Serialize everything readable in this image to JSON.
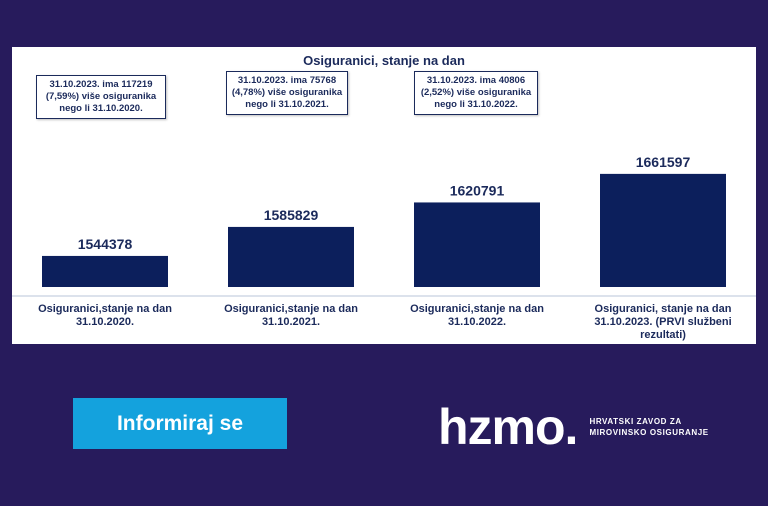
{
  "chart_data": {
    "type": "bar",
    "title": "Osiguranici, stanje na dan",
    "categories": [
      "Osiguranici,stanje na dan 31.10.2020.",
      "Osiguranici,stanje na dan 31.10.2021.",
      "Osiguranici,stanje na dan 31.10.2022.",
      "Osiguranici, stanje na dan 31.10.2023. (PRVI službeni rezultati)"
    ],
    "values": [
      1544378,
      1585829,
      1620791,
      1661597
    ],
    "value_labels": [
      "1544378",
      "1585829",
      "1620791",
      "1661597"
    ],
    "bar_color": "#0c1f5c",
    "annotations": [
      "31.10.2023. ima 117219 (7,59%) više osiguranika nego li 31.10.2020.",
      "31.10.2023. ima 75768  (4,78%) više osiguranika nego li 31.10.2021.",
      "31.10.2023. ima 40806 (2,52%) više osiguranika nego li 31.10.2022."
    ]
  },
  "cta": {
    "label": "Informiraj se"
  },
  "logo": {
    "mark": "hzmo.",
    "line1": "HRVATSKI ZAVOD ZA",
    "line2": "MIROVINSKO OSIGURANJE"
  },
  "colors": {
    "background": "#271b5c",
    "accent": "#14a2dd",
    "bar": "#0c1f5c"
  }
}
